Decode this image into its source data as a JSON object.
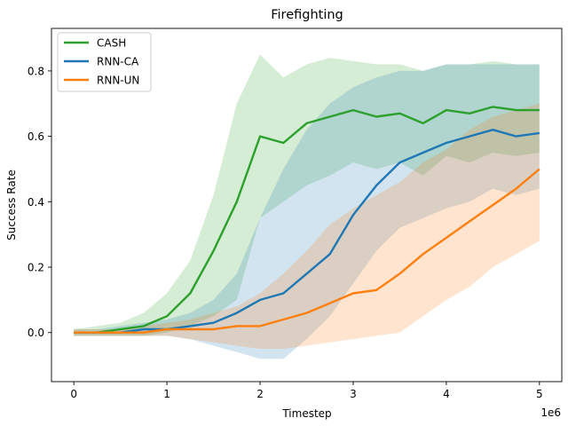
{
  "chart_data": {
    "type": "line",
    "title": "Firefighting",
    "xlabel": "Timestep",
    "ylabel": "Success Rate",
    "x_offset_label": "1e6",
    "xlim": [
      -0.24,
      5.24
    ],
    "ylim": [
      -0.15,
      0.93
    ],
    "xticks": [
      0,
      1,
      2,
      3,
      4,
      5
    ],
    "xtick_labels": [
      "0",
      "1",
      "2",
      "3",
      "4",
      "5"
    ],
    "yticks": [
      0.0,
      0.2,
      0.4,
      0.6,
      0.8
    ],
    "ytick_labels": [
      "0.0",
      "0.2",
      "0.4",
      "0.6",
      "0.8"
    ],
    "grid": false,
    "legend_position": "upper-left",
    "x": [
      0,
      0.25,
      0.5,
      0.75,
      1.0,
      1.25,
      1.5,
      1.75,
      2.0,
      2.25,
      2.5,
      2.75,
      3.0,
      3.25,
      3.5,
      3.75,
      4.0,
      4.25,
      4.5,
      4.75,
      5.0
    ],
    "series": [
      {
        "name": "CASH",
        "color": "#2ca02c",
        "values": [
          0.0,
          0.0,
          0.01,
          0.02,
          0.05,
          0.12,
          0.25,
          0.4,
          0.6,
          0.58,
          0.64,
          0.66,
          0.68,
          0.66,
          0.67,
          0.64,
          0.68,
          0.67,
          0.69,
          0.68,
          0.68
        ],
        "upper": [
          0.01,
          0.02,
          0.03,
          0.06,
          0.12,
          0.22,
          0.42,
          0.7,
          0.85,
          0.78,
          0.82,
          0.84,
          0.83,
          0.82,
          0.82,
          0.8,
          0.82,
          0.82,
          0.83,
          0.82,
          0.82
        ],
        "lower": [
          -0.01,
          -0.01,
          -0.01,
          -0.01,
          0.0,
          0.02,
          0.05,
          0.1,
          0.35,
          0.4,
          0.45,
          0.48,
          0.52,
          0.5,
          0.52,
          0.48,
          0.54,
          0.52,
          0.55,
          0.54,
          0.55
        ]
      },
      {
        "name": "RNN-CA",
        "color": "#1f77b4",
        "values": [
          0.0,
          0.0,
          0.0,
          0.01,
          0.01,
          0.02,
          0.03,
          0.06,
          0.1,
          0.12,
          0.18,
          0.24,
          0.36,
          0.45,
          0.52,
          0.55,
          0.58,
          0.6,
          0.62,
          0.6,
          0.61
        ],
        "upper": [
          0.01,
          0.01,
          0.02,
          0.03,
          0.04,
          0.06,
          0.1,
          0.18,
          0.35,
          0.5,
          0.62,
          0.7,
          0.75,
          0.78,
          0.8,
          0.8,
          0.82,
          0.82,
          0.82,
          0.82,
          0.82
        ],
        "lower": [
          -0.01,
          -0.01,
          -0.01,
          -0.01,
          -0.01,
          -0.02,
          -0.04,
          -0.06,
          -0.08,
          -0.08,
          -0.02,
          0.05,
          0.15,
          0.25,
          0.32,
          0.35,
          0.38,
          0.4,
          0.44,
          0.42,
          0.44
        ]
      },
      {
        "name": "RNN-UN",
        "color": "#ff7f0e",
        "values": [
          0.0,
          0.0,
          0.0,
          0.0,
          0.01,
          0.01,
          0.01,
          0.02,
          0.02,
          0.04,
          0.06,
          0.09,
          0.12,
          0.13,
          0.18,
          0.24,
          0.29,
          0.34,
          0.39,
          0.44,
          0.5
        ],
        "upper": [
          0.01,
          0.01,
          0.01,
          0.02,
          0.03,
          0.04,
          0.06,
          0.08,
          0.12,
          0.18,
          0.25,
          0.33,
          0.38,
          0.42,
          0.46,
          0.52,
          0.56,
          0.62,
          0.66,
          0.68,
          0.7
        ],
        "lower": [
          -0.01,
          -0.01,
          -0.01,
          -0.01,
          -0.01,
          -0.02,
          -0.03,
          -0.04,
          -0.05,
          -0.05,
          -0.04,
          -0.03,
          -0.02,
          -0.01,
          0.0,
          0.05,
          0.1,
          0.14,
          0.2,
          0.24,
          0.28
        ]
      }
    ]
  }
}
